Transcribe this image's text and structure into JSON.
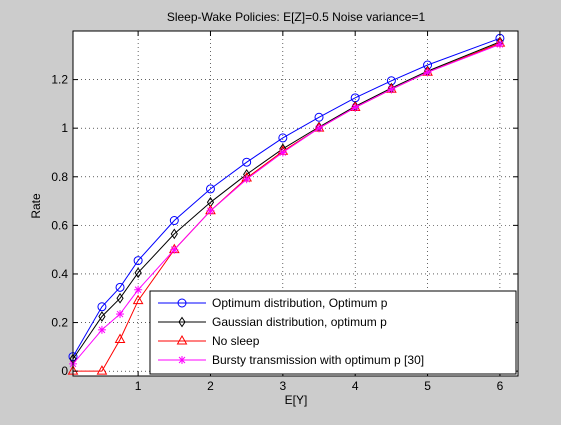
{
  "chart_data": {
    "type": "line",
    "title": "Sleep-Wake Policies: E[Z]=0.5 Noise variance=1",
    "xlabel": "E[Y]",
    "ylabel": "Rate",
    "xlim": [
      0.1,
      6.25
    ],
    "ylim": [
      -0.02,
      1.4
    ],
    "xticks": [
      1,
      2,
      3,
      4,
      5,
      6
    ],
    "yticks": [
      0,
      0.2,
      0.4,
      0.6,
      0.8,
      1,
      1.2
    ],
    "grid": true,
    "legend_position": "bottom-right",
    "series": [
      {
        "name": "Optimum distribution, Optimum p",
        "color": "#0000ff",
        "marker": "circle",
        "x": [
          0.1,
          0.5,
          0.75,
          1,
          1.5,
          2,
          2.5,
          3,
          3.5,
          4,
          4.5,
          5,
          6
        ],
        "y": [
          0.06,
          0.265,
          0.345,
          0.455,
          0.62,
          0.75,
          0.86,
          0.96,
          1.045,
          1.125,
          1.195,
          1.26,
          1.37
        ]
      },
      {
        "name": "Gaussian distribution, optimum p",
        "color": "#000000",
        "marker": "diamond",
        "x": [
          0.1,
          0.5,
          0.75,
          1,
          1.5,
          2,
          2.5,
          3,
          3.5,
          4,
          4.5,
          5,
          6
        ],
        "y": [
          0.05,
          0.225,
          0.3,
          0.405,
          0.565,
          0.695,
          0.81,
          0.915,
          1.005,
          1.09,
          1.165,
          1.235,
          1.355
        ]
      },
      {
        "name": "No sleep",
        "color": "#ff0000",
        "marker": "triangle",
        "x": [
          0.1,
          0.5,
          0.75,
          1,
          1.5,
          2,
          2.5,
          3,
          3.5,
          4,
          4.5,
          5,
          6
        ],
        "y": [
          0,
          0,
          0.13,
          0.29,
          0.5,
          0.66,
          0.795,
          0.905,
          1.0,
          1.085,
          1.16,
          1.23,
          1.35
        ]
      },
      {
        "name": "Bursty transmission with optimum p [30]",
        "color": "#ff00ff",
        "marker": "star",
        "x": [
          0.1,
          0.5,
          0.75,
          1,
          1.5,
          2,
          2.5,
          3,
          3.5,
          4,
          4.5,
          5,
          6
        ],
        "y": [
          0.03,
          0.17,
          0.235,
          0.335,
          0.5,
          0.66,
          0.79,
          0.9,
          1.0,
          1.085,
          1.16,
          1.23,
          1.345
        ]
      }
    ]
  }
}
